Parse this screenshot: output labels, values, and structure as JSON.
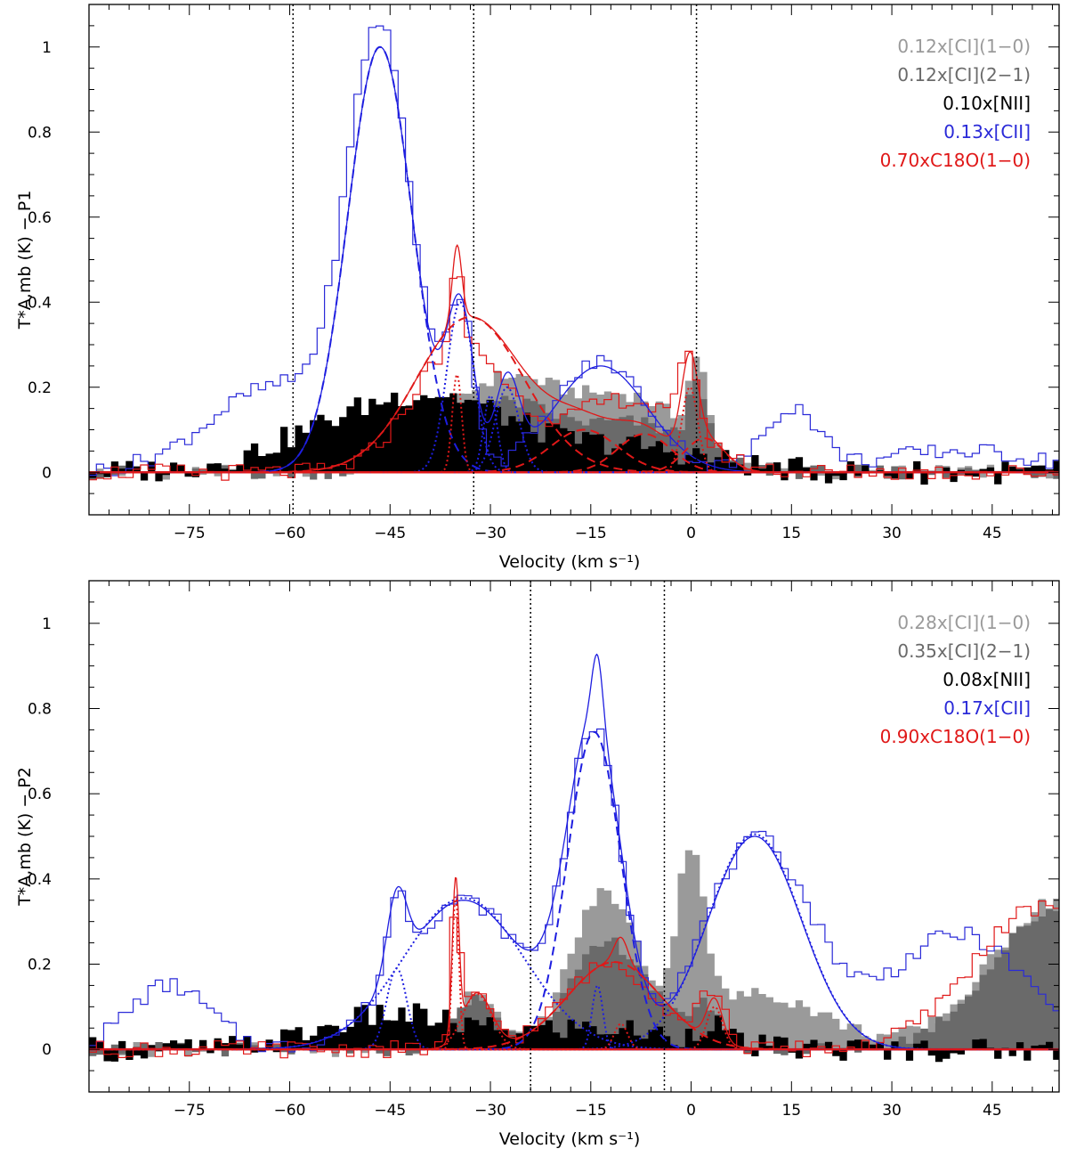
{
  "chart_data": [
    {
      "type": "line",
      "xlabel": "Velocity (km s⁻¹)",
      "ylabel": "T*A,mb (K) − P1",
      "xlim": [
        -90,
        55
      ],
      "ylim": [
        -0.1,
        1.1
      ],
      "xticks": [
        -75,
        -60,
        -45,
        -30,
        -15,
        0,
        15,
        30,
        45
      ],
      "yticks": [
        0,
        0.2,
        0.4,
        0.6,
        0.8,
        1
      ],
      "vlines": [
        -59.5,
        -32.5,
        0.8
      ],
      "legend": [
        {
          "label": "0.12x[CI](1−0)",
          "color": "#9a9a9a"
        },
        {
          "label": "0.12x[CI](2−1)",
          "color": "#6a6a6a"
        },
        {
          "label": "0.10x[NII]",
          "color": "#000000"
        },
        {
          "label": "0.13x[CII]",
          "color": "#2a2ad8"
        },
        {
          "label": "0.70xC18O(1−0)",
          "color": "#e01818"
        }
      ],
      "series": [
        {
          "name": "0.12x[CI](1−0)",
          "style": "filled-histogram",
          "color": "#9a9a9a",
          "components": [
            {
              "amp": 0.22,
              "center": -28,
              "width": 9
            },
            {
              "amp": 0.16,
              "center": -8,
              "width": 8
            },
            {
              "amp": 0.19,
              "center": 1,
              "width": 1.3
            }
          ]
        },
        {
          "name": "0.12x[CI](2−1)",
          "style": "filled-histogram",
          "color": "#6a6a6a",
          "components": [
            {
              "amp": 0.16,
              "center": -28,
              "width": 8
            },
            {
              "amp": 0.11,
              "center": -8,
              "width": 8
            },
            {
              "amp": 0.17,
              "center": 1,
              "width": 1.3
            }
          ]
        },
        {
          "name": "0.10x[NII]",
          "style": "filled-histogram",
          "color": "#000000",
          "components": [
            {
              "amp": 0.11,
              "center": -50,
              "width": 12
            },
            {
              "amp": 0.12,
              "center": -35,
              "width": 10
            },
            {
              "amp": 0.06,
              "center": -10,
              "width": 12
            }
          ]
        },
        {
          "name": "0.13x[CII]",
          "style": "histogram",
          "color": "#2a2ad8",
          "components": [
            {
              "amp": 1.0,
              "center": -46.5,
              "width": 4.8
            },
            {
              "amp": 0.37,
              "center": -34.5,
              "width": 2
            },
            {
              "amp": 0.26,
              "center": -13.5,
              "width": 7
            },
            {
              "amp": 0.2,
              "center": -62,
              "width": 10
            },
            {
              "amp": 0.15,
              "center": 15,
              "width": 4
            },
            {
              "amp": 0.05,
              "center": 40,
              "width": 12
            }
          ]
        },
        {
          "name": "0.70xC18O(1−0)",
          "style": "histogram",
          "color": "#e01818",
          "components": [
            {
              "amp": 0.3,
              "center": -34.5,
              "width": 7
            },
            {
              "amp": 0.18,
              "center": -35,
              "width": 0.8
            },
            {
              "amp": 0.17,
              "center": -10,
              "width": 9
            },
            {
              "amp": 0.2,
              "center": -0.3,
              "width": 1.3
            }
          ]
        }
      ],
      "fits": [
        {
          "name": "[CII] fit",
          "color": "#1e1ee0",
          "dash": "solid",
          "components": [
            {
              "amp": 1.0,
              "center": -46.5,
              "width": 4.8
            },
            {
              "amp": 0.37,
              "center": -34.5,
              "width": 2
            },
            {
              "amp": 0.2,
              "center": -27.5,
              "width": 1.8
            },
            {
              "amp": 0.25,
              "center": -13.5,
              "width": 7
            }
          ]
        },
        {
          "name": "[CII] component",
          "color": "#1e1ee0",
          "dash": "dashed",
          "components": [
            {
              "amp": 1.0,
              "center": -46.5,
              "width": 4.8
            }
          ]
        },
        {
          "name": "[CII] component",
          "color": "#1e1ee0",
          "dash": "dotted",
          "components": [
            {
              "amp": 0.4,
              "center": -34.5,
              "width": 2
            }
          ]
        },
        {
          "name": "[CII] component",
          "color": "#1e1ee0",
          "dash": "dotted",
          "components": [
            {
              "amp": 0.18,
              "center": -30,
              "width": 1
            }
          ]
        },
        {
          "name": "[CII] component",
          "color": "#1e1ee0",
          "dash": "dotted",
          "components": [
            {
              "amp": 0.2,
              "center": -27.5,
              "width": 1.8
            }
          ]
        },
        {
          "name": "C18O fit",
          "color": "#e01818",
          "dash": "solid",
          "components": [
            {
              "amp": 0.365,
              "center": -33,
              "width": 8
            },
            {
              "amp": 0.1,
              "center": -16,
              "width": 5
            },
            {
              "amp": 0.09,
              "center": -7,
              "width": 4
            },
            {
              "amp": 0.08,
              "center": 2,
              "width": 3
            },
            {
              "amp": 0.18,
              "center": -35,
              "width": 0.7
            },
            {
              "amp": 0.2,
              "center": -0.2,
              "width": 1.2
            }
          ]
        },
        {
          "name": "C18O component",
          "color": "#e01818",
          "dash": "dashed",
          "components": [
            {
              "amp": 0.365,
              "center": -33,
              "width": 8
            }
          ]
        },
        {
          "name": "C18O component",
          "color": "#e01818",
          "dash": "dashed",
          "components": [
            {
              "amp": 0.1,
              "center": -16,
              "width": 5
            }
          ]
        },
        {
          "name": "C18O component",
          "color": "#e01818",
          "dash": "dashed",
          "components": [
            {
              "amp": 0.09,
              "center": -7,
              "width": 4
            }
          ]
        },
        {
          "name": "C18O component",
          "color": "#e01818",
          "dash": "dashed",
          "components": [
            {
              "amp": 0.08,
              "center": 2,
              "width": 3
            }
          ]
        },
        {
          "name": "C18O component",
          "color": "#e01818",
          "dash": "dotted",
          "components": [
            {
              "amp": 0.23,
              "center": -35,
              "width": 0.7
            }
          ]
        },
        {
          "name": "C18O component",
          "color": "#e01818",
          "dash": "dotted",
          "components": [
            {
              "amp": 0.2,
              "center": -0.2,
              "width": 1.2
            }
          ]
        }
      ]
    },
    {
      "type": "line",
      "xlabel": "Velocity (km s⁻¹)",
      "ylabel": "T*A,mb (K) − P2",
      "xlim": [
        -90,
        55
      ],
      "ylim": [
        -0.1,
        1.1
      ],
      "xticks": [
        -75,
        -60,
        -45,
        -30,
        -15,
        0,
        15,
        30,
        45
      ],
      "yticks": [
        0,
        0.2,
        0.4,
        0.6,
        0.8,
        1
      ],
      "vlines": [
        -24,
        -4
      ],
      "legend": [
        {
          "label": "0.28x[CI](1−0)",
          "color": "#9a9a9a"
        },
        {
          "label": "0.35x[CI](2−1)",
          "color": "#6a6a6a"
        },
        {
          "label": "0.08x[NII]",
          "color": "#000000"
        },
        {
          "label": "0.17x[CII]",
          "color": "#2a2ad8"
        },
        {
          "label": "0.90xC18O(1−0)",
          "color": "#e01818"
        }
      ],
      "series": [
        {
          "name": "0.28x[CI](1−0)",
          "style": "filled-histogram",
          "color": "#9a9a9a",
          "components": [
            {
              "amp": 0.14,
              "center": -32,
              "width": 3
            },
            {
              "amp": 0.36,
              "center": -13,
              "width": 5
            },
            {
              "amp": 0.4,
              "center": 0,
              "width": 2
            },
            {
              "amp": 0.13,
              "center": 10,
              "width": 10
            },
            {
              "amp": 0.35,
              "center": 55,
              "width": 10
            }
          ]
        },
        {
          "name": "0.35x[CI](2−1)",
          "style": "filled-histogram",
          "color": "#6a6a6a",
          "components": [
            {
              "amp": 0.12,
              "center": -32,
              "width": 3
            },
            {
              "amp": 0.25,
              "center": -12,
              "width": 6
            },
            {
              "amp": 0.1,
              "center": 2,
              "width": 2
            },
            {
              "amp": 0.33,
              "center": 55,
              "width": 10
            }
          ]
        },
        {
          "name": "0.08x[NII]",
          "style": "filled-histogram",
          "color": "#000000",
          "components": [
            {
              "amp": 0.08,
              "center": -45,
              "width": 10
            },
            {
              "amp": 0.05,
              "center": -15,
              "width": 12
            },
            {
              "amp": 0.05,
              "center": 3,
              "width": 2
            }
          ]
        },
        {
          "name": "0.17x[CII]",
          "style": "histogram",
          "color": "#2a2ad8",
          "components": [
            {
              "amp": 0.35,
              "center": -34,
              "width": 9
            },
            {
              "amp": 0.18,
              "center": -44,
              "width": 1.5
            },
            {
              "amp": 0.72,
              "center": -14.5,
              "width": 4
            },
            {
              "amp": 0.49,
              "center": 10,
              "width": 8
            },
            {
              "amp": 0.27,
              "center": 40,
              "width": 10
            },
            {
              "amp": 0.15,
              "center": -78,
              "width": 6
            }
          ]
        },
        {
          "name": "0.90xC18O(1−0)",
          "style": "histogram",
          "color": "#e01818",
          "components": [
            {
              "amp": 0.3,
              "center": -35.2,
              "width": 0.6
            },
            {
              "amp": 0.12,
              "center": -32,
              "width": 2.5
            },
            {
              "amp": 0.2,
              "center": -12,
              "width": 7
            },
            {
              "amp": 0.12,
              "center": 3,
              "width": 2
            },
            {
              "amp": 0.33,
              "center": 52,
              "width": 10
            }
          ]
        }
      ],
      "fits": [
        {
          "name": "[CII] fit",
          "color": "#1e1ee0",
          "dash": "solid",
          "components": [
            {
              "amp": 0.35,
              "center": -34,
              "width": 9
            },
            {
              "amp": 0.19,
              "center": -44,
              "width": 1.5
            },
            {
              "amp": 0.75,
              "center": -14.5,
              "width": 4
            },
            {
              "amp": 0.15,
              "center": -14,
              "width": 0.8
            },
            {
              "amp": 0.5,
              "center": 9.5,
              "width": 7
            }
          ]
        },
        {
          "name": "[CII] component",
          "color": "#1e1ee0",
          "dash": "dotted",
          "components": [
            {
              "amp": 0.355,
              "center": -34,
              "width": 9
            }
          ]
        },
        {
          "name": "[CII] component",
          "color": "#1e1ee0",
          "dash": "dotted",
          "components": [
            {
              "amp": 0.19,
              "center": -44,
              "width": 1.5
            }
          ]
        },
        {
          "name": "[CII] component",
          "color": "#1e1ee0",
          "dash": "dashed",
          "components": [
            {
              "amp": 0.745,
              "center": -14.5,
              "width": 4
            }
          ]
        },
        {
          "name": "[CII] component",
          "color": "#1e1ee0",
          "dash": "dotted",
          "components": [
            {
              "amp": 0.15,
              "center": -14,
              "width": 0.8
            }
          ]
        },
        {
          "name": "[CII] component",
          "color": "#1e1ee0",
          "dash": "dotted",
          "components": [
            {
              "amp": 0.505,
              "center": 9.5,
              "width": 7
            }
          ]
        },
        {
          "name": "C18O fit",
          "color": "#e01818",
          "dash": "solid",
          "components": [
            {
              "amp": 0.36,
              "center": -35.2,
              "width": 0.5
            },
            {
              "amp": 0.13,
              "center": -32,
              "width": 2.2
            },
            {
              "amp": 0.205,
              "center": -11.5,
              "width": 7
            },
            {
              "amp": 0.06,
              "center": -10.5,
              "width": 1
            },
            {
              "amp": 0.1,
              "center": 3.5,
              "width": 1.2
            }
          ]
        },
        {
          "name": "C18O component",
          "color": "#e01818",
          "dash": "dotted",
          "components": [
            {
              "amp": 0.36,
              "center": -35.2,
              "width": 0.5
            }
          ]
        },
        {
          "name": "C18O component",
          "color": "#e01818",
          "dash": "dotted",
          "components": [
            {
              "amp": 0.13,
              "center": -32,
              "width": 2.2
            }
          ]
        },
        {
          "name": "C18O component",
          "color": "#e01818",
          "dash": "dashed",
          "components": [
            {
              "amp": 0.205,
              "center": -11.5,
              "width": 7
            }
          ]
        },
        {
          "name": "C18O component",
          "color": "#e01818",
          "dash": "dotted",
          "components": [
            {
              "amp": 0.06,
              "center": -10.5,
              "width": 1
            }
          ]
        },
        {
          "name": "C18O component",
          "color": "#e01818",
          "dash": "dotted",
          "components": [
            {
              "amp": 0.1,
              "center": 3.5,
              "width": 1.2
            }
          ]
        }
      ]
    }
  ]
}
